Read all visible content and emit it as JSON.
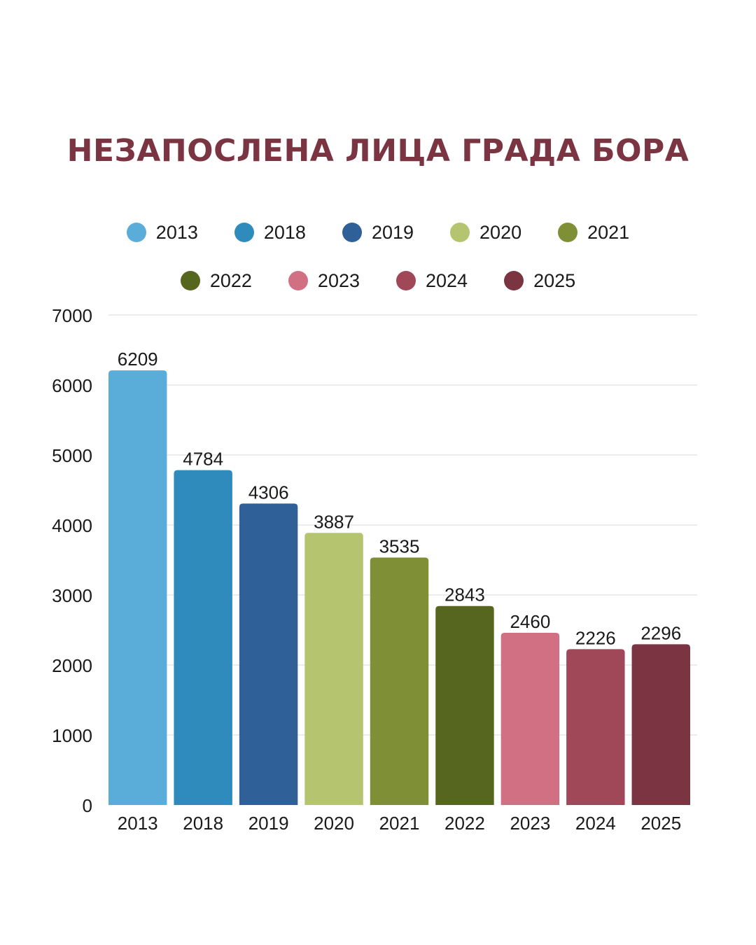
{
  "colors": {
    "title": "#7B3442",
    "grid": "#d9d9d9",
    "text": "#1a1a1a"
  },
  "chart_data": {
    "type": "bar",
    "title": "НЕЗАПОСЛЕНА ЛИЦА ГРАДА БОРА",
    "xlabel": "",
    "ylabel": "",
    "categories": [
      "2013",
      "2018",
      "2019",
      "2020",
      "2021",
      "2022",
      "2023",
      "2024",
      "2025"
    ],
    "values": [
      6209,
      4784,
      4306,
      3887,
      3535,
      2843,
      2460,
      2226,
      2296
    ],
    "bar_colors": [
      "#5BADD9",
      "#2E8BBC",
      "#2F6098",
      "#B5C46E",
      "#7F8F35",
      "#57661E",
      "#D27083",
      "#A04858",
      "#7B3442"
    ],
    "ylim": [
      0,
      7000
    ],
    "yticks": [
      0,
      1000,
      2000,
      3000,
      4000,
      5000,
      6000,
      7000
    ],
    "grid": true,
    "legend": {
      "placement": "top-center",
      "entries": [
        "2013",
        "2018",
        "2019",
        "2020",
        "2021",
        "2022",
        "2023",
        "2024",
        "2025"
      ]
    }
  }
}
